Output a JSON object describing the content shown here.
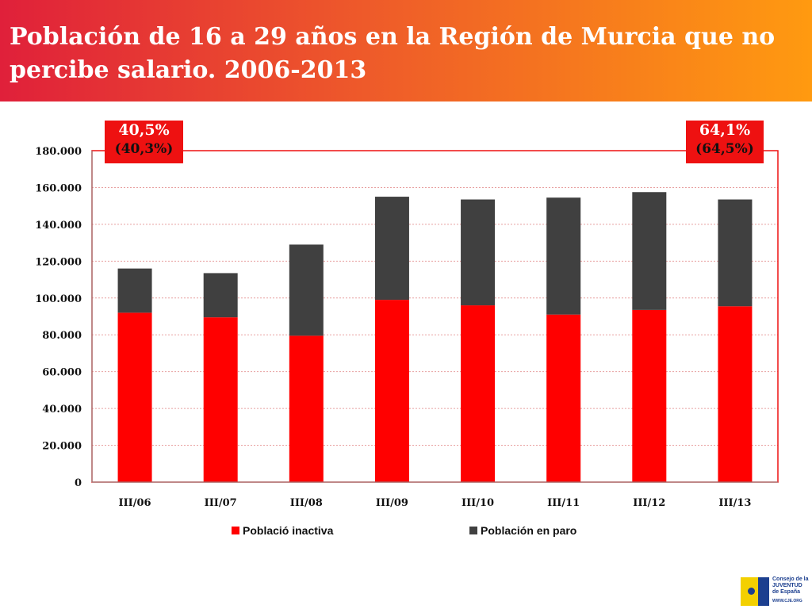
{
  "title": "Población de 16 a 29 años en la Región de Murcia que no percibe salario. 2006-2013",
  "badges": {
    "left": {
      "pct": "40,5%",
      "sub": "(40,3%)"
    },
    "right": {
      "pct": "64,1%",
      "sub": "(64,5%)"
    }
  },
  "logo": {
    "line1": "Consejo de la",
    "line2": "JUVENTUD",
    "line3": "de España",
    "url": "WWW.CJE.ORG"
  },
  "chart_data": {
    "type": "bar",
    "stacked": true,
    "categories": [
      "III/06",
      "III/07",
      "III/08",
      "III/09",
      "III/10",
      "III/11",
      "III/12",
      "III/13"
    ],
    "series": [
      {
        "name": "Població inactiva",
        "color": "#ff0000",
        "values": [
          92000,
          89500,
          79500,
          99000,
          96000,
          91000,
          93500,
          95500
        ]
      },
      {
        "name": "Población en paro",
        "color": "#404040",
        "values": [
          24000,
          24000,
          49500,
          56000,
          57500,
          63500,
          64000,
          58000
        ]
      }
    ],
    "ylim": [
      0,
      180000
    ],
    "yticks": [
      0,
      20000,
      40000,
      60000,
      80000,
      100000,
      120000,
      140000,
      160000,
      180000
    ],
    "ytick_labels": [
      "0",
      "20.000",
      "40.000",
      "60.000",
      "80.000",
      "100.000",
      "120.000",
      "140.000",
      "160.000",
      "180.000"
    ],
    "grid": true,
    "legend": "bottom",
    "colors": {
      "plot_border": "#ee1111",
      "grid": "#e8a0a0",
      "axis": "#888888"
    }
  }
}
